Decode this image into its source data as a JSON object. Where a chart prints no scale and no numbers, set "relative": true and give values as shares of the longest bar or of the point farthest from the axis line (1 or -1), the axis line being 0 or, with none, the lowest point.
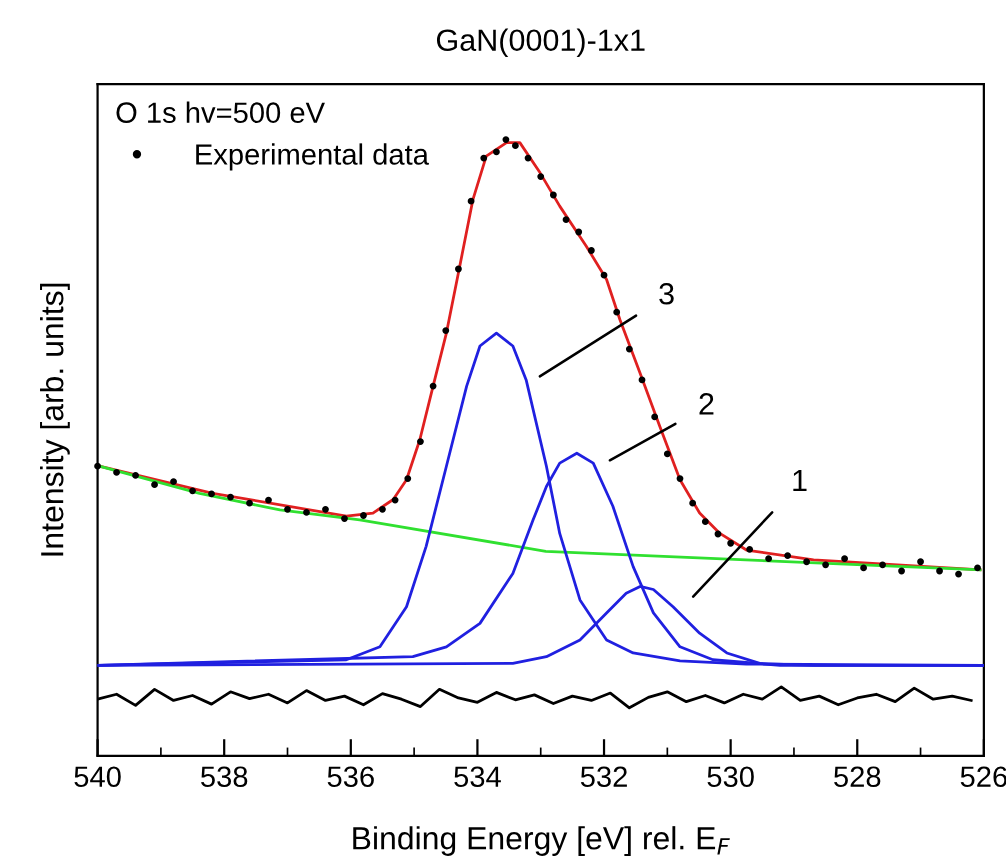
{
  "chart_data": {
    "type": "line",
    "title": "GaN(0001)-1x1",
    "xlabel": "Binding Energy [eV] rel. E$_{F}$",
    "ylabel": "Intensity [arb. units]",
    "legend_title": "O 1s hv=500 eV",
    "legend": "top left",
    "relative": true,
    "tick_labels": "x",
    "grid": false,
    "xlim": [
      540,
      526
    ],
    "xticks": [
      540,
      538,
      536,
      534,
      532,
      530,
      528,
      526
    ],
    "annotations": [
      "3",
      "2",
      "1"
    ],
    "series": [
      {
        "name": "Experimental data",
        "type": "scatter",
        "marker": "circle",
        "color": "#000000",
        "x": [
          540.0,
          539.7,
          539.4,
          539.1,
          538.8,
          538.5,
          538.2,
          537.9,
          537.6,
          537.3,
          537.0,
          536.7,
          536.4,
          536.1,
          535.8,
          535.5,
          535.3,
          535.1,
          534.9,
          534.7,
          534.5,
          534.3,
          534.1,
          533.9,
          533.7,
          533.55,
          533.4,
          533.2,
          533.0,
          532.8,
          532.6,
          532.4,
          532.2,
          532.0,
          531.8,
          531.6,
          531.4,
          531.2,
          531.0,
          530.8,
          530.6,
          530.4,
          530.2,
          530.0,
          529.7,
          529.4,
          529.1,
          528.8,
          528.5,
          528.2,
          527.9,
          527.6,
          527.3,
          527.0,
          526.7,
          526.4,
          526.1
        ],
        "values": [
          0.47,
          0.46,
          0.455,
          0.44,
          0.445,
          0.43,
          0.425,
          0.42,
          0.41,
          0.415,
          0.4,
          0.395,
          0.4,
          0.385,
          0.39,
          0.4,
          0.415,
          0.45,
          0.51,
          0.6,
          0.69,
          0.79,
          0.9,
          0.97,
          0.98,
          1.0,
          0.99,
          0.97,
          0.94,
          0.91,
          0.87,
          0.85,
          0.82,
          0.78,
          0.72,
          0.66,
          0.61,
          0.55,
          0.49,
          0.45,
          0.41,
          0.38,
          0.36,
          0.345,
          0.335,
          0.32,
          0.325,
          0.315,
          0.31,
          0.32,
          0.305,
          0.31,
          0.3,
          0.315,
          0.3,
          0.295,
          0.305
        ]
      },
      {
        "color": "#e02020",
        "x": [
          539.97,
          538.18,
          536.07,
          535.65,
          535.33,
          535.12,
          534.91,
          534.7,
          534.49,
          534.28,
          534.07,
          533.86,
          533.54,
          533.33,
          533.01,
          532.7,
          532.28,
          531.96,
          531.75,
          531.43,
          531.12,
          530.8,
          530.49,
          530.17,
          529.75,
          528.69,
          526.06
        ],
        "values": [
          0.47,
          0.426,
          0.389,
          0.394,
          0.416,
          0.448,
          0.513,
          0.6,
          0.686,
          0.794,
          0.903,
          0.973,
          0.995,
          0.995,
          0.946,
          0.892,
          0.827,
          0.773,
          0.708,
          0.621,
          0.535,
          0.448,
          0.394,
          0.361,
          0.334,
          0.318,
          0.302
        ]
      },
      {
        "color": "#30e030",
        "x": [
          540,
          538.39,
          537.12,
          535.86,
          532.92,
          529.76,
          526.06
        ],
        "values": [
          0.471,
          0.426,
          0.399,
          0.383,
          0.332,
          0.318,
          0.302
        ]
      },
      {
        "color": "#2020e0",
        "x": [
          540,
          536.07,
          535.54,
          535.12,
          534.81,
          534.49,
          534.17,
          533.96,
          533.7,
          533.44,
          533.23,
          532.91,
          532.7,
          532.38,
          531.96,
          531.54,
          530.8,
          529.75,
          526
        ],
        "values": [
          0.147,
          0.156,
          0.177,
          0.242,
          0.34,
          0.47,
          0.6,
          0.665,
          0.686,
          0.665,
          0.61,
          0.47,
          0.361,
          0.253,
          0.188,
          0.167,
          0.154,
          0.149,
          0.147
        ]
      },
      {
        "color": "#2020e0",
        "x": [
          540,
          535.02,
          534.49,
          533.96,
          533.44,
          533.12,
          532.91,
          532.7,
          532.43,
          532.17,
          531.86,
          531.54,
          531.22,
          530.8,
          530.28,
          529.22,
          526
        ],
        "values": [
          0.147,
          0.161,
          0.177,
          0.215,
          0.296,
          0.383,
          0.437,
          0.475,
          0.491,
          0.475,
          0.405,
          0.307,
          0.232,
          0.177,
          0.156,
          0.147,
          0.147
        ]
      },
      {
        "color": "#2020e0",
        "x": [
          540,
          533.44,
          532.91,
          532.38,
          531.96,
          531.65,
          531.43,
          531.22,
          530.91,
          530.49,
          530.06,
          529.54,
          528.69,
          526
        ],
        "values": [
          0.147,
          0.15,
          0.161,
          0.188,
          0.232,
          0.264,
          0.275,
          0.27,
          0.242,
          0.199,
          0.167,
          0.15,
          0.147,
          0.147
        ]
      },
      {
        "color": "#000000",
        "x": [
          540.0,
          539.7,
          539.4,
          539.1,
          538.8,
          538.5,
          538.2,
          537.9,
          537.6,
          537.3,
          537.0,
          536.7,
          536.4,
          536.1,
          535.8,
          535.5,
          535.2,
          534.9,
          534.6,
          534.3,
          534.0,
          533.7,
          533.4,
          533.1,
          532.8,
          532.5,
          532.2,
          531.9,
          531.6,
          531.3,
          531.0,
          530.7,
          530.4,
          530.1,
          529.8,
          529.5,
          529.2,
          528.9,
          528.6,
          528.3,
          528.0,
          527.7,
          527.4,
          527.1,
          526.8,
          526.5,
          526.2
        ],
        "values": [
          0.092,
          0.1,
          0.082,
          0.108,
          0.09,
          0.098,
          0.084,
          0.104,
          0.093,
          0.1,
          0.086,
          0.106,
          0.09,
          0.097,
          0.083,
          0.101,
          0.092,
          0.08,
          0.108,
          0.094,
          0.087,
          0.103,
          0.091,
          0.099,
          0.085,
          0.097,
          0.09,
          0.102,
          0.078,
          0.095,
          0.104,
          0.088,
          0.098,
          0.086,
          0.1,
          0.092,
          0.112,
          0.09,
          0.097,
          0.083,
          0.094,
          0.1,
          0.088,
          0.11,
          0.092,
          0.097,
          0.09
        ]
      }
    ]
  }
}
